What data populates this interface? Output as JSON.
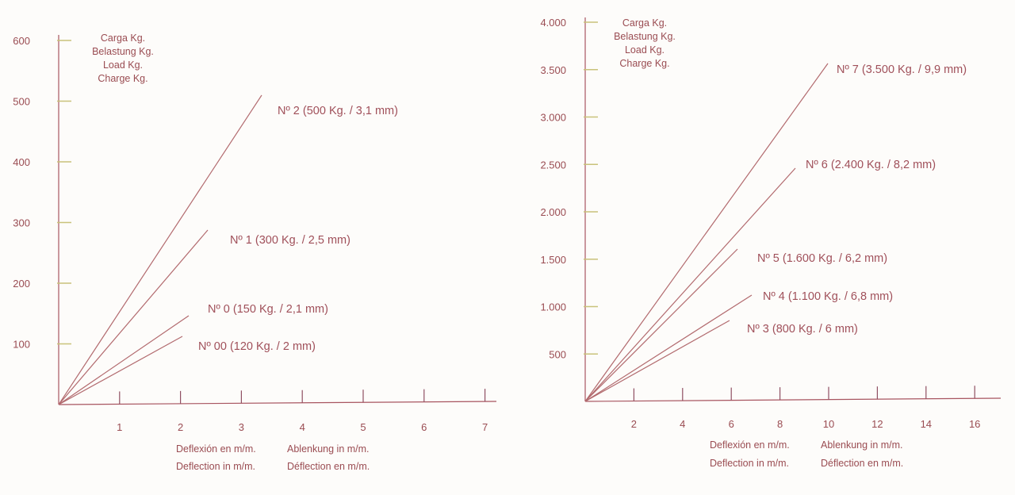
{
  "colors": {
    "axis": "#a85560",
    "line": "#b26a6e",
    "text": "#9a4c52",
    "ytick": "#c9c27a",
    "xtick": "#8f4f62"
  },
  "chart_data": [
    {
      "type": "line",
      "ylabel_lines": [
        "Carga Kg.",
        "Belastung Kg.",
        "Load Kg.",
        "Charge Kg."
      ],
      "xlabel_lines": [
        [
          "Deflexión en m/m.",
          "Ablenkung in m/m."
        ],
        [
          "Deflection in m/m.",
          "Déflection en m/m."
        ]
      ],
      "x_ticks": [
        "1",
        "2",
        "3",
        "4",
        "5",
        "6",
        "7"
      ],
      "y_ticks": [
        "100",
        "200",
        "300",
        "400",
        "500",
        "600"
      ],
      "xlim": [
        0,
        7
      ],
      "ylim": [
        0,
        600
      ],
      "series": [
        {
          "name": "Nº 2  (500 Kg. / 3,1 mm)",
          "x": [
            0,
            3.1
          ],
          "y": [
            0,
            500
          ]
        },
        {
          "name": "Nº 1  (300 Kg. / 2,5 mm)",
          "x": [
            0,
            2.5
          ],
          "y": [
            0,
            300
          ]
        },
        {
          "name": "Nº 0  (150 Kg. / 2,1 mm)",
          "x": [
            0,
            2.1
          ],
          "y": [
            0,
            150
          ]
        },
        {
          "name": "Nº 00  (120 Kg. / 2 mm)",
          "x": [
            0,
            2.0
          ],
          "y": [
            0,
            120
          ]
        }
      ]
    },
    {
      "type": "line",
      "ylabel_lines": [
        "Carga Kg.",
        "Belastung Kg.",
        "Load Kg.",
        "Charge Kg."
      ],
      "xlabel_lines": [
        [
          "Deflexión en m/m.",
          "Ablenkung in m/m."
        ],
        [
          "Deflection in m/m.",
          "Déflection en m/m."
        ]
      ],
      "x_ticks": [
        "2",
        "4",
        "6",
        "8",
        "10",
        "12",
        "14",
        "16"
      ],
      "y_ticks": [
        "500",
        "1.000",
        "1.500",
        "2.000",
        "2.500",
        "3.000",
        "3.500",
        "4.000"
      ],
      "xlim": [
        0,
        17
      ],
      "ylim": [
        0,
        4000
      ],
      "series": [
        {
          "name": "Nº 7  (3.500 Kg. / 9,9 mm)",
          "x": [
            0,
            9.9
          ],
          "y": [
            0,
            3500
          ]
        },
        {
          "name": "Nº 6  (2.400 Kg. / 8,2 mm)",
          "x": [
            0,
            8.2
          ],
          "y": [
            0,
            2400
          ]
        },
        {
          "name": "Nº 5  (1.600 Kg. / 6,2 mm)",
          "x": [
            0,
            6.2
          ],
          "y": [
            0,
            1600
          ]
        },
        {
          "name": "Nº 4  (1.100 Kg. / 6,8 mm)",
          "x": [
            0,
            6.8
          ],
          "y": [
            0,
            1100
          ]
        },
        {
          "name": "Nº 3  (800 Kg. / 6 mm)",
          "x": [
            0,
            6.0
          ],
          "y": [
            0,
            800
          ]
        }
      ]
    }
  ]
}
